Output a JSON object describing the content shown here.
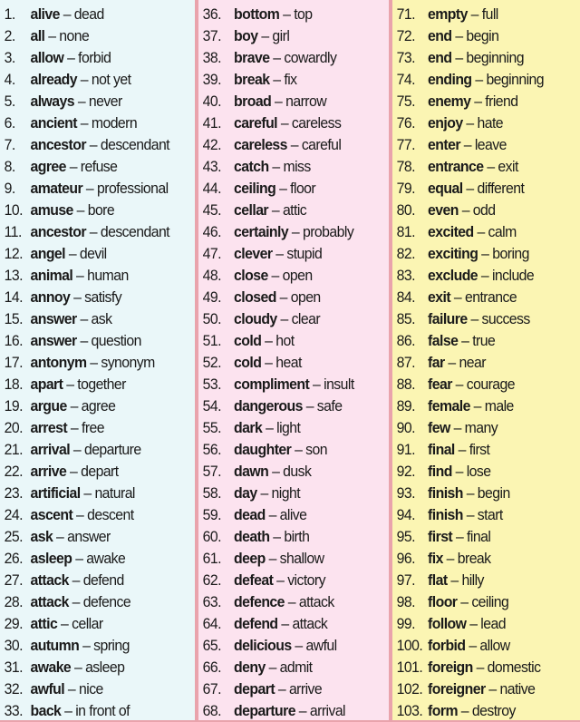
{
  "colors": {
    "left": "#eaf7f9",
    "middle": "#fce3ef",
    "right": "#fbf5b3",
    "frame": "#e9a3ac"
  },
  "columns": [
    [
      {
        "n": "1.",
        "w": "alive",
        "a": "dead"
      },
      {
        "n": "2.",
        "w": "all",
        "a": "none"
      },
      {
        "n": "3.",
        "w": "allow",
        "a": "forbid"
      },
      {
        "n": "4.",
        "w": "already",
        "a": "not yet"
      },
      {
        "n": "5.",
        "w": "always",
        "a": "never"
      },
      {
        "n": "6.",
        "w": "ancient",
        "a": "modern"
      },
      {
        "n": "7.",
        "w": "ancestor",
        "a": "descendant"
      },
      {
        "n": "8.",
        "w": "agree",
        "a": "refuse"
      },
      {
        "n": "9.",
        "w": "amateur",
        "a": "professional"
      },
      {
        "n": "10.",
        "w": "amuse",
        "a": "bore"
      },
      {
        "n": "11.",
        "w": "ancestor",
        "a": "descendant"
      },
      {
        "n": "12.",
        "w": "angel",
        "a": "devil"
      },
      {
        "n": "13.",
        "w": "animal",
        "a": "human"
      },
      {
        "n": "14.",
        "w": "annoy",
        "a": "satisfy"
      },
      {
        "n": "15.",
        "w": "answer",
        "a": "ask"
      },
      {
        "n": "16.",
        "w": "answer",
        "a": "question"
      },
      {
        "n": "17.",
        "w": "antonym",
        "a": "synonym"
      },
      {
        "n": "18.",
        "w": "apart",
        "a": "together"
      },
      {
        "n": "19.",
        "w": "argue",
        "a": "agree"
      },
      {
        "n": "20.",
        "w": "arrest",
        "a": "free"
      },
      {
        "n": "21.",
        "w": "arrival",
        "a": "departure"
      },
      {
        "n": "22.",
        "w": "arrive",
        "a": "depart"
      },
      {
        "n": "23.",
        "w": "artificial",
        "a": "natural"
      },
      {
        "n": "24.",
        "w": "ascent",
        "a": "descent"
      },
      {
        "n": "25.",
        "w": "ask",
        "a": "answer"
      },
      {
        "n": "26.",
        "w": "asleep",
        "a": "awake"
      },
      {
        "n": "27.",
        "w": "attack",
        "a": "defend"
      },
      {
        "n": "28.",
        "w": "attack",
        "a": "defence"
      },
      {
        "n": "29.",
        "w": "attic",
        "a": "cellar"
      },
      {
        "n": "30.",
        "w": "autumn",
        "a": "spring"
      },
      {
        "n": "31.",
        "w": "awake",
        "a": "asleep"
      },
      {
        "n": "32.",
        "w": "awful",
        "a": "nice"
      },
      {
        "n": "33.",
        "w": "back",
        "a": "in front of"
      }
    ],
    [
      {
        "n": "36.",
        "w": "bottom",
        "a": "top"
      },
      {
        "n": "37.",
        "w": "boy",
        "a": "girl"
      },
      {
        "n": "38.",
        "w": "brave",
        "a": "cowardly"
      },
      {
        "n": "39.",
        "w": "break",
        "a": "fix"
      },
      {
        "n": "40.",
        "w": "broad",
        "a": "narrow"
      },
      {
        "n": "41.",
        "w": "careful",
        "a": "careless"
      },
      {
        "n": "42.",
        "w": "careless",
        "a": "careful"
      },
      {
        "n": "43.",
        "w": "catch",
        "a": "miss"
      },
      {
        "n": "44.",
        "w": "ceiling",
        "a": "floor"
      },
      {
        "n": "45.",
        "w": "cellar",
        "a": "attic"
      },
      {
        "n": "46.",
        "w": "certainly",
        "a": "probably"
      },
      {
        "n": "47.",
        "w": "clever",
        "a": "stupid"
      },
      {
        "n": "48.",
        "w": "close",
        "a": "open"
      },
      {
        "n": "49.",
        "w": "closed",
        "a": "open"
      },
      {
        "n": "50.",
        "w": "cloudy",
        "a": "clear"
      },
      {
        "n": "51.",
        "w": "cold",
        "a": "hot"
      },
      {
        "n": "52.",
        "w": "cold",
        "a": "heat"
      },
      {
        "n": "53.",
        "w": "compliment",
        "a": "insult"
      },
      {
        "n": "54.",
        "w": "dangerous",
        "a": "safe"
      },
      {
        "n": "55.",
        "w": "dark",
        "a": "light"
      },
      {
        "n": "56.",
        "w": "daughter",
        "a": "son"
      },
      {
        "n": "57.",
        "w": "dawn",
        "a": "dusk"
      },
      {
        "n": "58.",
        "w": "day",
        "a": "night"
      },
      {
        "n": "59.",
        "w": "dead",
        "a": "alive"
      },
      {
        "n": "60.",
        "w": "death",
        "a": "birth"
      },
      {
        "n": "61.",
        "w": "deep",
        "a": "shallow"
      },
      {
        "n": "62.",
        "w": "defeat",
        "a": "victory"
      },
      {
        "n": "63.",
        "w": "defence",
        "a": "attack"
      },
      {
        "n": "64.",
        "w": "defend",
        "a": "attack"
      },
      {
        "n": "65.",
        "w": "delicious",
        "a": "awful"
      },
      {
        "n": "66.",
        "w": "deny",
        "a": "admit"
      },
      {
        "n": "67.",
        "w": "depart",
        "a": "arrive"
      },
      {
        "n": "68.",
        "w": "departure",
        "a": "arrival"
      }
    ],
    [
      {
        "n": "71.",
        "w": "empty",
        "a": "full"
      },
      {
        "n": "72.",
        "w": "end",
        "a": "begin"
      },
      {
        "n": "73.",
        "w": "end",
        "a": "beginning"
      },
      {
        "n": "74.",
        "w": "ending",
        "a": "beginning"
      },
      {
        "n": "75.",
        "w": "enemy",
        "a": "friend"
      },
      {
        "n": "76.",
        "w": "enjoy",
        "a": "hate"
      },
      {
        "n": "77.",
        "w": "enter",
        "a": "leave"
      },
      {
        "n": "78.",
        "w": "entrance",
        "a": "exit"
      },
      {
        "n": "79.",
        "w": "equal",
        "a": "different"
      },
      {
        "n": "80.",
        "w": "even",
        "a": "odd"
      },
      {
        "n": "81.",
        "w": "excited",
        "a": "calm"
      },
      {
        "n": "82.",
        "w": "exciting",
        "a": "boring"
      },
      {
        "n": "83.",
        "w": "exclude",
        "a": "include"
      },
      {
        "n": "84.",
        "w": "exit",
        "a": "entrance"
      },
      {
        "n": "85.",
        "w": "failure",
        "a": "success"
      },
      {
        "n": "86.",
        "w": "false",
        "a": "true"
      },
      {
        "n": "87.",
        "w": "far",
        "a": "near"
      },
      {
        "n": "88.",
        "w": "fear",
        "a": "courage"
      },
      {
        "n": "89.",
        "w": "female",
        "a": "male"
      },
      {
        "n": "90.",
        "w": "few",
        "a": "many"
      },
      {
        "n": "91.",
        "w": "final",
        "a": "first"
      },
      {
        "n": "92.",
        "w": "find",
        "a": "lose"
      },
      {
        "n": "93.",
        "w": "finish",
        "a": "begin"
      },
      {
        "n": "94.",
        "w": "finish",
        "a": "start"
      },
      {
        "n": "95.",
        "w": "first",
        "a": "final"
      },
      {
        "n": "96.",
        "w": "fix",
        "a": "break"
      },
      {
        "n": "97.",
        "w": "flat",
        "a": "hilly"
      },
      {
        "n": "98.",
        "w": "floor",
        "a": "ceiling"
      },
      {
        "n": "99.",
        "w": "follow",
        "a": "lead"
      },
      {
        "n": "100.",
        "w": "forbid",
        "a": "allow"
      },
      {
        "n": "101.",
        "w": "foreign",
        "a": "domestic"
      },
      {
        "n": "102.",
        "w": "foreigner",
        "a": "native"
      },
      {
        "n": "103.",
        "w": "form",
        "a": "destroy"
      }
    ]
  ],
  "dash": " – "
}
